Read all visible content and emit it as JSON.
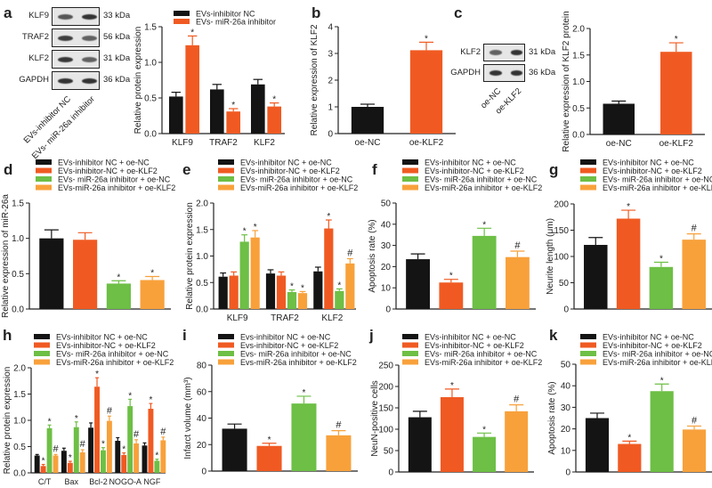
{
  "blots": [
    {
      "panel": "a",
      "rows": [
        {
          "protein": "KLF9",
          "kda": "33 kDa",
          "bands": [
            0.7,
            1.0
          ]
        },
        {
          "protein": "TRAF2",
          "kda": "56 kDa",
          "bands": [
            0.9,
            0.6
          ]
        },
        {
          "protein": "KLF2",
          "kda": "31 kDa",
          "bands": [
            0.95,
            0.6
          ]
        },
        {
          "protein": "GAPDH",
          "kda": "36 kDa",
          "bands": [
            1.0,
            1.0
          ]
        }
      ],
      "lanes": [
        "EVs-inhibitor NC",
        "EVs- miR-26a inhibitor"
      ]
    },
    {
      "panel": "c",
      "rows": [
        {
          "protein": "KLF2",
          "kda": "31 kDa",
          "bands": [
            0.6,
            1.0
          ]
        },
        {
          "protein": "GAPDH",
          "kda": "36 kDa",
          "bands": [
            1.0,
            1.0
          ]
        }
      ],
      "lanes": [
        "oe-NC",
        "oe-KLF2"
      ]
    }
  ],
  "colors": {
    "black": "#141414",
    "orange": "#f05a22",
    "green": "#6dbf45",
    "light_orange": "#f8a13b"
  },
  "chart_data": [
    {
      "panel": "a",
      "type": "bar",
      "ylabel": "Relative protein expression",
      "ylim": [
        0,
        1.5
      ],
      "yticks": [
        "0.0",
        "0.5",
        "1.0",
        "1.5"
      ],
      "ytick_values": [
        0,
        0.5,
        1,
        1.5
      ],
      "categories": [
        "KLF9",
        "TRAF2",
        "KLF2"
      ],
      "series": [
        {
          "name": "EVs-inhibitor NC",
          "color": "#141414",
          "values": [
            0.52,
            0.62,
            0.69
          ],
          "errors": [
            0.06,
            0.07,
            0.07
          ],
          "sig": [
            "",
            "",
            ""
          ]
        },
        {
          "name": "EVs- miR-26a inhibitor",
          "color": "#f05a22",
          "values": [
            1.24,
            0.31,
            0.38
          ],
          "errors": [
            0.13,
            0.04,
            0.05
          ],
          "sig": [
            "*",
            "*",
            "*"
          ]
        }
      ]
    },
    {
      "panel": "b",
      "type": "bar",
      "ylabel": "Relative expression of KLF2",
      "ylim": [
        0,
        4
      ],
      "yticks": [
        "0",
        "1",
        "2",
        "3",
        "4"
      ],
      "ytick_values": [
        0,
        1,
        2,
        3,
        4
      ],
      "categories": [
        "oe-NC",
        "oe-KLF2"
      ],
      "series": [
        {
          "name": "",
          "colors": [
            "#141414",
            "#f05a22"
          ],
          "values": [
            1.0,
            3.12
          ],
          "errors": [
            0.1,
            0.3
          ],
          "sig": [
            "",
            "*"
          ]
        }
      ]
    },
    {
      "panel": "c",
      "type": "bar",
      "ylabel": "Relative expression of KLF2 protein",
      "ylim": [
        0,
        2
      ],
      "yticks": [
        "0.0",
        "0.5",
        "1.0",
        "1.5",
        "2.0"
      ],
      "ytick_values": [
        0,
        0.5,
        1,
        1.5,
        2
      ],
      "categories": [
        "oe-NC",
        "oe-KLF2"
      ],
      "series": [
        {
          "name": "",
          "colors": [
            "#141414",
            "#f05a22"
          ],
          "values": [
            0.58,
            1.56
          ],
          "errors": [
            0.05,
            0.17
          ],
          "sig": [
            "",
            "*"
          ]
        }
      ]
    },
    {
      "panel": "d",
      "type": "bar",
      "ylabel": "Relative expression of miR-26a",
      "ylim": [
        0,
        1.5
      ],
      "yticks": [
        "0.0",
        "0.5",
        "1.0",
        "1.5"
      ],
      "ytick_values": [
        0,
        0.5,
        1,
        1.5
      ],
      "categories": [
        ""
      ],
      "series": [
        {
          "name": "EVs-inhibitor NC + oe-NC",
          "color": "#141414",
          "values": [
            1.0
          ],
          "errors": [
            0.12
          ],
          "sig": [
            ""
          ]
        },
        {
          "name": "EVs-inhibitor-NC + oe-KLF2",
          "color": "#f05a22",
          "values": [
            0.98
          ],
          "errors": [
            0.1
          ],
          "sig": [
            ""
          ]
        },
        {
          "name": "EVs- miR-26a inhibitor + oe-NC",
          "color": "#6dbf45",
          "values": [
            0.36
          ],
          "errors": [
            0.04
          ],
          "sig": [
            "*"
          ]
        },
        {
          "name": "EVs-miR-26a inhibitor + oe-KLF2",
          "color": "#f8a13b",
          "values": [
            0.41
          ],
          "errors": [
            0.05
          ],
          "sig": [
            "*"
          ]
        }
      ]
    },
    {
      "panel": "e",
      "type": "bar",
      "ylabel": "Relative protein expression",
      "ylim": [
        0,
        2
      ],
      "yticks": [
        "0.0",
        "0.5",
        "1.0",
        "1.5",
        "2.0"
      ],
      "ytick_values": [
        0,
        0.5,
        1,
        1.5,
        2
      ],
      "categories": [
        "KLF9",
        "TRAF2",
        "KLF2"
      ],
      "series": [
        {
          "name": "EVs-inhibitor NC + oe-NC",
          "color": "#141414",
          "values": [
            0.61,
            0.67,
            0.71
          ],
          "errors": [
            0.07,
            0.07,
            0.08
          ],
          "sig": [
            "",
            "",
            ""
          ]
        },
        {
          "name": "EVs-inhibitor-NC + oe-KLF2",
          "color": "#f05a22",
          "values": [
            0.63,
            0.63,
            1.52
          ],
          "errors": [
            0.07,
            0.07,
            0.16
          ],
          "sig": [
            "",
            "",
            "*"
          ]
        },
        {
          "name": "EVs- miR-26a inhibitor + oe-NC",
          "color": "#6dbf45",
          "values": [
            1.27,
            0.32,
            0.34
          ],
          "errors": [
            0.13,
            0.04,
            0.04
          ],
          "sig": [
            "*",
            "*",
            "*"
          ]
        },
        {
          "name": "EVs-miR-26a inhibitor + oe-KLF2",
          "color": "#f8a13b",
          "values": [
            1.35,
            0.3,
            0.86
          ],
          "errors": [
            0.13,
            0.03,
            0.09
          ],
          "sig": [
            "*",
            "*",
            "#"
          ]
        }
      ]
    },
    {
      "panel": "f",
      "type": "bar",
      "ylabel": "Apoptosis rate (%)",
      "ylim": [
        0,
        50
      ],
      "yticks": [
        "0",
        "10",
        "20",
        "30",
        "40",
        "50"
      ],
      "ytick_values": [
        0,
        10,
        20,
        30,
        40,
        50
      ],
      "categories": [
        ""
      ],
      "series": [
        {
          "name": "EVs-inhibitor NC + oe-NC",
          "color": "#141414",
          "values": [
            23.5
          ],
          "errors": [
            2.5
          ],
          "sig": [
            ""
          ]
        },
        {
          "name": "EVs-inhibitor-NC + oe-KLF2",
          "color": "#f05a22",
          "values": [
            12.5
          ],
          "errors": [
            1.5
          ],
          "sig": [
            "*"
          ]
        },
        {
          "name": "EVs- miR-26a inhibitor + oe-NC",
          "color": "#6dbf45",
          "values": [
            34.5
          ],
          "errors": [
            3.6
          ],
          "sig": [
            "*"
          ]
        },
        {
          "name": "EVs-miR-26a inhibitor + oe-KLF2",
          "color": "#f8a13b",
          "values": [
            24.5
          ],
          "errors": [
            2.8
          ],
          "sig": [
            "#"
          ]
        }
      ]
    },
    {
      "panel": "g",
      "type": "bar",
      "ylabel": "Neurite length (μm)",
      "ylim": [
        0,
        200
      ],
      "yticks": [
        "0",
        "50",
        "100",
        "150",
        "200"
      ],
      "ytick_values": [
        0,
        50,
        100,
        150,
        200
      ],
      "categories": [
        ""
      ],
      "series": [
        {
          "name": "EVs-inhibitor NC + oe-NC",
          "color": "#141414",
          "values": [
            122
          ],
          "errors": [
            14
          ],
          "sig": [
            ""
          ]
        },
        {
          "name": "EVs-inhibitor-NC + oe-KLF2",
          "color": "#f05a22",
          "values": [
            172
          ],
          "errors": [
            16
          ],
          "sig": [
            "*"
          ]
        },
        {
          "name": "EVs- miR-26a inhibitor + oe-NC",
          "color": "#6dbf45",
          "values": [
            80
          ],
          "errors": [
            9
          ],
          "sig": [
            "*"
          ]
        },
        {
          "name": "EVs-miR-26a inhibitor + oe-KLF2",
          "color": "#f8a13b",
          "values": [
            132
          ],
          "errors": [
            11
          ],
          "sig": [
            "#"
          ]
        }
      ]
    },
    {
      "panel": "h",
      "type": "bar",
      "ylabel": "Relative protein expression",
      "ylim": [
        0,
        2
      ],
      "yticks": [
        "0.0",
        "0.5",
        "1.0",
        "1.5",
        "2.0"
      ],
      "ytick_values": [
        0,
        0.5,
        1,
        1.5,
        2
      ],
      "categories": [
        "C/T",
        "Bax",
        "Bcl-2",
        "NOGO-A",
        "NGF"
      ],
      "series": [
        {
          "name": "EVs-inhibitor NC + oe-NC",
          "color": "#141414",
          "values": [
            0.33,
            0.42,
            0.86,
            0.61,
            0.52
          ],
          "errors": [
            0.02,
            0.05,
            0.09,
            0.06,
            0.05
          ],
          "sig": [
            "",
            "",
            "",
            "",
            ""
          ]
        },
        {
          "name": "EVs-inhibitor-NC + oe-KLF2",
          "color": "#f05a22",
          "values": [
            0.13,
            0.19,
            1.64,
            0.34,
            1.22
          ],
          "errors": [
            0.03,
            0.03,
            0.17,
            0.04,
            0.1
          ],
          "sig": [
            "*",
            "*",
            "*",
            "*",
            "*"
          ]
        },
        {
          "name": "EVs- miR-26a inhibitor + oe-NC",
          "color": "#6dbf45",
          "values": [
            0.85,
            0.87,
            0.43,
            1.27,
            0.23
          ],
          "errors": [
            0.06,
            0.1,
            0.05,
            0.13,
            0.03
          ],
          "sig": [
            "*",
            "*",
            "*",
            "*",
            "*"
          ]
        },
        {
          "name": "EVs-miR-26a inhibitor + oe-KLF2",
          "color": "#f8a13b",
          "values": [
            0.33,
            0.39,
            0.99,
            0.56,
            0.62
          ],
          "errors": [
            0.02,
            0.05,
            0.09,
            0.07,
            0.06
          ],
          "sig": [
            "#",
            "#",
            "#",
            "#",
            "#"
          ]
        }
      ]
    },
    {
      "panel": "i",
      "type": "bar",
      "ylabel": "Infarct volume (mm³)",
      "ylim": [
        0,
        80
      ],
      "yticks": [
        "0",
        "20",
        "40",
        "60",
        "80"
      ],
      "ytick_values": [
        0,
        20,
        40,
        60,
        80
      ],
      "categories": [
        ""
      ],
      "series": [
        {
          "name": "Evs-inhibitor NC + oe-NC",
          "color": "#141414",
          "values": [
            32
          ],
          "errors": [
            3.5
          ],
          "sig": [
            ""
          ]
        },
        {
          "name": "Evs-inhibitor-NC + oe-KLF2",
          "color": "#f05a22",
          "values": [
            19
          ],
          "errors": [
            2
          ],
          "sig": [
            "*"
          ]
        },
        {
          "name": "Evs- miR-26a inhibitor + oe-NC",
          "color": "#6dbf45",
          "values": [
            51
          ],
          "errors": [
            5.5
          ],
          "sig": [
            "*"
          ]
        },
        {
          "name": "Evs-miR-26a inhibitor + oe-KLF2",
          "color": "#f8a13b",
          "values": [
            27
          ],
          "errors": [
            3.5
          ],
          "sig": [
            "#"
          ]
        }
      ]
    },
    {
      "panel": "j",
      "type": "bar",
      "ylabel": "NeuN-positive cells",
      "ylim": [
        0,
        250
      ],
      "yticks": [
        "0",
        "50",
        "100",
        "150",
        "200",
        "250"
      ],
      "ytick_values": [
        0,
        50,
        100,
        150,
        200,
        250
      ],
      "categories": [
        ""
      ],
      "series": [
        {
          "name": "EVs-inhibitor NC + oe-NC",
          "color": "#141414",
          "values": [
            128
          ],
          "errors": [
            14
          ],
          "sig": [
            ""
          ]
        },
        {
          "name": "EVs-inhibitor-NC + oe-KLF2",
          "color": "#f05a22",
          "values": [
            175
          ],
          "errors": [
            19
          ],
          "sig": [
            "*"
          ]
        },
        {
          "name": "EVs- miR-26a inhibitor + oe-NC",
          "color": "#6dbf45",
          "values": [
            82
          ],
          "errors": [
            9
          ],
          "sig": [
            "*"
          ]
        },
        {
          "name": "EVs-miR-26a inhibitor + oe-KLF2",
          "color": "#f8a13b",
          "values": [
            142
          ],
          "errors": [
            15
          ],
          "sig": [
            "#"
          ]
        }
      ]
    },
    {
      "panel": "k",
      "type": "bar",
      "ylabel": "Apoptosis rate (%)",
      "ylim": [
        0,
        50
      ],
      "yticks": [
        "0",
        "10",
        "20",
        "30",
        "40",
        "50"
      ],
      "ytick_values": [
        0,
        10,
        20,
        30,
        40,
        50
      ],
      "categories": [
        ""
      ],
      "series": [
        {
          "name": "EVs-inhibitor NC + oe-NC",
          "color": "#141414",
          "values": [
            25
          ],
          "errors": [
            2.3
          ],
          "sig": [
            ""
          ]
        },
        {
          "name": "EVs-inhibitor-NC + oe-KLF2",
          "color": "#f05a22",
          "values": [
            13
          ],
          "errors": [
            1.3
          ],
          "sig": [
            "*"
          ]
        },
        {
          "name": "EVs- miR-26a inhibitor + oe-NC",
          "color": "#6dbf45",
          "values": [
            37.5
          ],
          "errors": [
            3.3
          ],
          "sig": [
            "*"
          ]
        },
        {
          "name": "EVs-miR-26a inhibitor + oe-KLF2",
          "color": "#f8a13b",
          "values": [
            19.7
          ],
          "errors": [
            1.6
          ],
          "sig": [
            "#"
          ]
        }
      ]
    }
  ]
}
